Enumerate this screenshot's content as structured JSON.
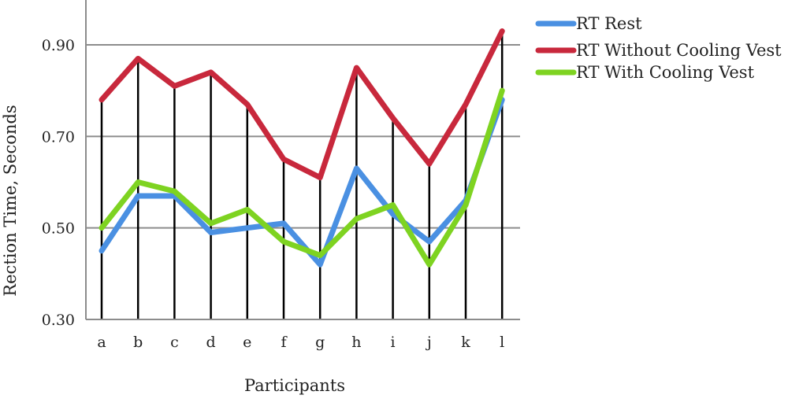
{
  "chart_data": {
    "type": "line",
    "title": "",
    "xlabel": "Participants",
    "ylabel": "Rection Time, Seconds",
    "categories": [
      "a",
      "b",
      "c",
      "d",
      "e",
      "f",
      "g",
      "h",
      "i",
      "j",
      "k",
      "l"
    ],
    "ylim": [
      0.3,
      0.9
    ],
    "yticks": [
      "0.30",
      "0.50",
      "0.70",
      "0.90"
    ],
    "grid": true,
    "legend_position": "top-right",
    "series": [
      {
        "name": "RT Rest",
        "color": "#4a90e2",
        "values": [
          0.45,
          0.57,
          0.57,
          0.49,
          0.5,
          0.51,
          0.42,
          0.63,
          0.53,
          0.47,
          0.56,
          0.78
        ]
      },
      {
        "name": "RT Without Cooling Vest",
        "color": "#c8283c",
        "values": [
          0.78,
          0.87,
          0.81,
          0.84,
          0.77,
          0.65,
          0.61,
          0.85,
          0.74,
          0.64,
          0.77,
          0.93
        ]
      },
      {
        "name": "RT With Cooling Vest",
        "color": "#7ed321",
        "values": [
          0.5,
          0.6,
          0.58,
          0.51,
          0.54,
          0.47,
          0.44,
          0.52,
          0.55,
          0.42,
          0.55,
          0.8
        ]
      }
    ]
  }
}
